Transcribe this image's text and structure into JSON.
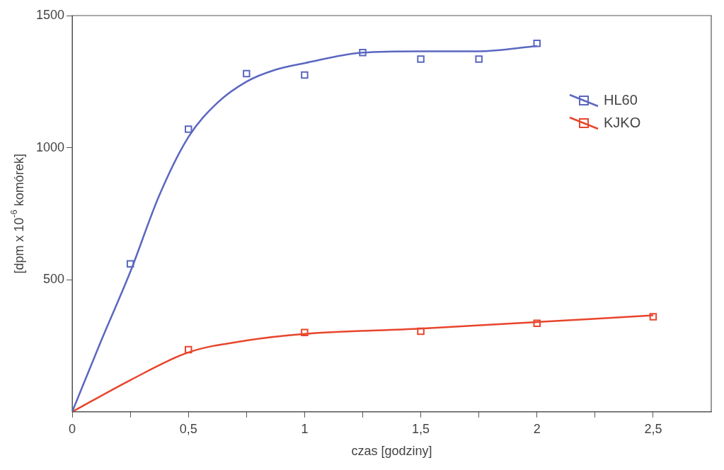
{
  "chart_data": {
    "type": "scatter",
    "xlabel": "czas [godziny]",
    "ylabel": "[dpm x 10$^{-6}$ komórek]",
    "xlim": [
      0,
      2.75
    ],
    "xticks": [
      0,
      {
        "value": 0.25,
        "label": null
      },
      {
        "value": 0.5,
        "label": "0,5"
      },
      {
        "value": 0.75,
        "label": null
      },
      1,
      {
        "value": 1.25,
        "label": null
      },
      {
        "value": 1.5,
        "label": "1,5"
      },
      {
        "value": 1.75,
        "label": null
      },
      2,
      {
        "value": 2.25,
        "label": null
      },
      {
        "value": 2.5,
        "label": "2,5"
      }
    ],
    "ylim": [
      0,
      1500
    ],
    "yticks": [
      500,
      1000,
      1500
    ],
    "grid": false,
    "legend": "top right",
    "marker": "square",
    "series": [
      {
        "name": "HL60",
        "color": "#5b67c0",
        "x": [
          0.25,
          0.5,
          0.75,
          1,
          1.25,
          1.5,
          1.75,
          2
        ],
        "values": [
          560,
          1070,
          1280,
          1275,
          1360,
          1335,
          1335,
          1395
        ]
      },
      {
        "name": "KJKO",
        "color": "#e8452c",
        "x": [
          0.5,
          1,
          1.5,
          2,
          2.5
        ],
        "values": [
          235,
          300,
          305,
          335,
          360
        ]
      },
      {
        "color": "#5b67c0",
        "type": "line",
        "marker": "none",
        "x": [
          0,
          0.125,
          0.25,
          0.375,
          0.5,
          0.625,
          0.75,
          0.875,
          1,
          1.25,
          1.5,
          1.75,
          2
        ],
        "values": [
          0,
          270,
          530,
          820,
          1040,
          1170,
          1250,
          1295,
          1320,
          1360,
          1365,
          1365,
          1385
        ]
      },
      {
        "color": "#e8452c",
        "type": "line",
        "marker": "none",
        "x": [
          0,
          0.25,
          0.5,
          0.75,
          1,
          1.5,
          2,
          2.5
        ],
        "values": [
          0,
          120,
          225,
          270,
          295,
          315,
          340,
          365
        ]
      }
    ]
  }
}
